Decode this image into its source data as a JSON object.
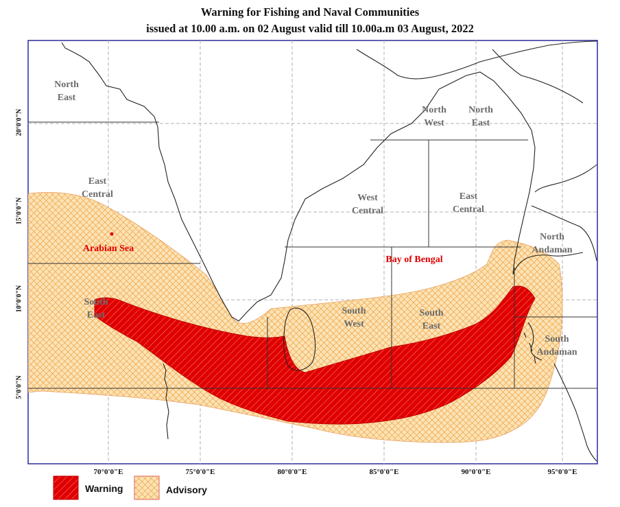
{
  "title": {
    "line1": "Warning  for Fishing and Naval Communities",
    "line2": "issued at 10.00 a.m. on  02  August valid till 10.00a.m 03  August, 2022"
  },
  "x_ticks": [
    "70°0'0\"E",
    "75°0'0\"E",
    "80°0'0\"E",
    "85°0'0\"E",
    "90°0'0\"E",
    "95°0'0\"E"
  ],
  "y_ticks": [
    "20°0'0\"N",
    "15°0'0\"N",
    "10°0'0\"N",
    "5°0'0\"N"
  ],
  "seas": {
    "arabian": "Arabian Sea",
    "bay": "Bay of Bengal"
  },
  "regions": {
    "as_north_east": [
      "North",
      "East"
    ],
    "as_east_central": [
      "East",
      "Central"
    ],
    "as_south_east": [
      "South",
      "East"
    ],
    "bob_north_west": [
      "North",
      "West"
    ],
    "bob_north_east": [
      "North",
      "East"
    ],
    "bob_west_central": [
      "West",
      "Central"
    ],
    "bob_east_central": [
      "East",
      "Central"
    ],
    "bob_south_west": [
      "South",
      "West"
    ],
    "bob_south_east": [
      "South",
      "East"
    ],
    "north_andaman": [
      "North",
      "Andaman"
    ],
    "south_andaman": [
      "South",
      "Andaman"
    ]
  },
  "legend": {
    "warning": "Warning",
    "advisory": "Advisory"
  },
  "colors": {
    "warning_fill": "#e00000",
    "advisory_fill": "#fbe3b5",
    "advisory_hatch": "#f0a040",
    "region_label": "#6b6b6b",
    "sea_label": "#e00000",
    "frame": "#2a2a9a",
    "grid": "#b0b0b0"
  }
}
